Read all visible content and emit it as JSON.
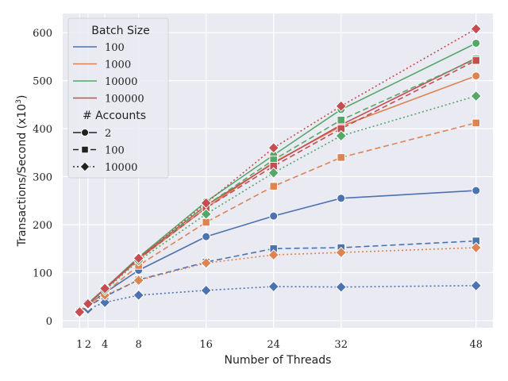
{
  "chart_data": {
    "type": "line",
    "xlabel": "Number of Threads",
    "ylabel": "Transactions/Second (x10",
    "ylabel_superscript": "3",
    "ylabel_close": ")",
    "xlim": [
      -1,
      50
    ],
    "ylim": [
      -15,
      640
    ],
    "x_ticks": [
      1,
      2,
      4,
      8,
      16,
      24,
      32,
      48
    ],
    "y_ticks": [
      0,
      100,
      200,
      300,
      400,
      500,
      600
    ],
    "grid": true,
    "legend_position": "top-left",
    "colors": {
      "100": "#4c72b0",
      "1000": "#dd8452",
      "10000": "#55a868",
      "100000": "#c44e52",
      "background": "#eaeaf2",
      "grid": "#ffffff"
    },
    "legend": {
      "batch_title": "Batch Size",
      "batch_entries": [
        {
          "label": "100",
          "color_key": "100"
        },
        {
          "label": "1000",
          "color_key": "1000"
        },
        {
          "label": "10000",
          "color_key": "10000"
        },
        {
          "label": "100000",
          "color_key": "100000"
        }
      ],
      "accounts_title": "# Accounts",
      "account_entries": [
        {
          "label": "2",
          "style": "solid",
          "marker": "circle"
        },
        {
          "label": "100",
          "style": "dashed",
          "marker": "square"
        },
        {
          "label": "10000",
          "style": "dotted",
          "marker": "diamond"
        }
      ]
    },
    "series": [
      {
        "name": "Batch 100, 2 accounts",
        "batch": "100",
        "accounts": "2",
        "style": "solid",
        "marker": "circle",
        "x": [
          1,
          2,
          4,
          8,
          16,
          24,
          32,
          48
        ],
        "values": [
          18,
          33,
          58,
          105,
          175,
          218,
          255,
          271
        ]
      },
      {
        "name": "Batch 1000, 2 accounts",
        "batch": "1000",
        "accounts": "2",
        "style": "solid",
        "marker": "circle",
        "x": [
          1,
          2,
          4,
          8,
          16,
          24,
          32,
          48
        ],
        "values": [
          18,
          35,
          65,
          128,
          235,
          330,
          405,
          510
        ]
      },
      {
        "name": "Batch 10000, 2 accounts",
        "batch": "10000",
        "accounts": "2",
        "style": "solid",
        "marker": "circle",
        "x": [
          1,
          2,
          4,
          8,
          16,
          24,
          32,
          48
        ],
        "values": [
          19,
          36,
          67,
          132,
          248,
          345,
          440,
          578
        ]
      },
      {
        "name": "Batch 100000, 2 accounts",
        "batch": "100000",
        "accounts": "2",
        "style": "solid",
        "marker": "circle",
        "x": [
          1,
          2,
          4,
          8,
          16,
          24,
          32,
          48
        ],
        "values": [
          19,
          35,
          66,
          130,
          240,
          328,
          408,
          547
        ]
      },
      {
        "name": "Batch 100, 100 accounts",
        "batch": "100",
        "accounts": "100",
        "style": "dashed",
        "marker": "square",
        "x": [
          1,
          2,
          4,
          8,
          16,
          24,
          32,
          48
        ],
        "values": [
          16,
          30,
          50,
          85,
          122,
          150,
          152,
          166
        ]
      },
      {
        "name": "Batch 1000, 100 accounts",
        "batch": "1000",
        "accounts": "100",
        "style": "dashed",
        "marker": "square",
        "x": [
          1,
          2,
          4,
          8,
          16,
          24,
          32,
          48
        ],
        "values": [
          17,
          33,
          58,
          115,
          205,
          280,
          340,
          412
        ]
      },
      {
        "name": "Batch 10000, 100 accounts",
        "batch": "10000",
        "accounts": "100",
        "style": "dashed",
        "marker": "square",
        "x": [
          1,
          2,
          4,
          8,
          16,
          24,
          32,
          48
        ],
        "values": [
          18,
          35,
          66,
          128,
          240,
          335,
          418,
          545
        ]
      },
      {
        "name": "Batch 100000, 100 accounts",
        "batch": "100000",
        "accounts": "100",
        "style": "dashed",
        "marker": "square",
        "x": [
          1,
          2,
          4,
          8,
          16,
          24,
          32,
          48
        ],
        "values": [
          18,
          35,
          65,
          128,
          235,
          322,
          400,
          542
        ]
      },
      {
        "name": "Batch 100, 10000 accounts",
        "batch": "100",
        "accounts": "10000",
        "style": "dotted",
        "marker": "diamond",
        "x": [
          1,
          2,
          4,
          8,
          16,
          24,
          32,
          48
        ],
        "values": [
          17,
          24,
          38,
          53,
          63,
          71,
          70,
          73
        ]
      },
      {
        "name": "Batch 1000, 10000 accounts",
        "batch": "1000",
        "accounts": "10000",
        "style": "dotted",
        "marker": "diamond",
        "x": [
          1,
          2,
          4,
          8,
          16,
          24,
          32,
          48
        ],
        "values": [
          17,
          32,
          53,
          84,
          120,
          137,
          142,
          152
        ]
      },
      {
        "name": "Batch 10000, 10000 accounts",
        "batch": "10000",
        "accounts": "10000",
        "style": "dotted",
        "marker": "diamond",
        "x": [
          1,
          2,
          4,
          8,
          16,
          24,
          32,
          48
        ],
        "values": [
          18,
          34,
          63,
          125,
          222,
          308,
          385,
          468
        ]
      },
      {
        "name": "Batch 100000, 10000 accounts",
        "batch": "100000",
        "accounts": "10000",
        "style": "dotted",
        "marker": "diamond",
        "x": [
          1,
          2,
          4,
          8,
          16,
          24,
          32,
          48
        ],
        "values": [
          18,
          35,
          67,
          130,
          245,
          360,
          447,
          608
        ]
      }
    ]
  }
}
